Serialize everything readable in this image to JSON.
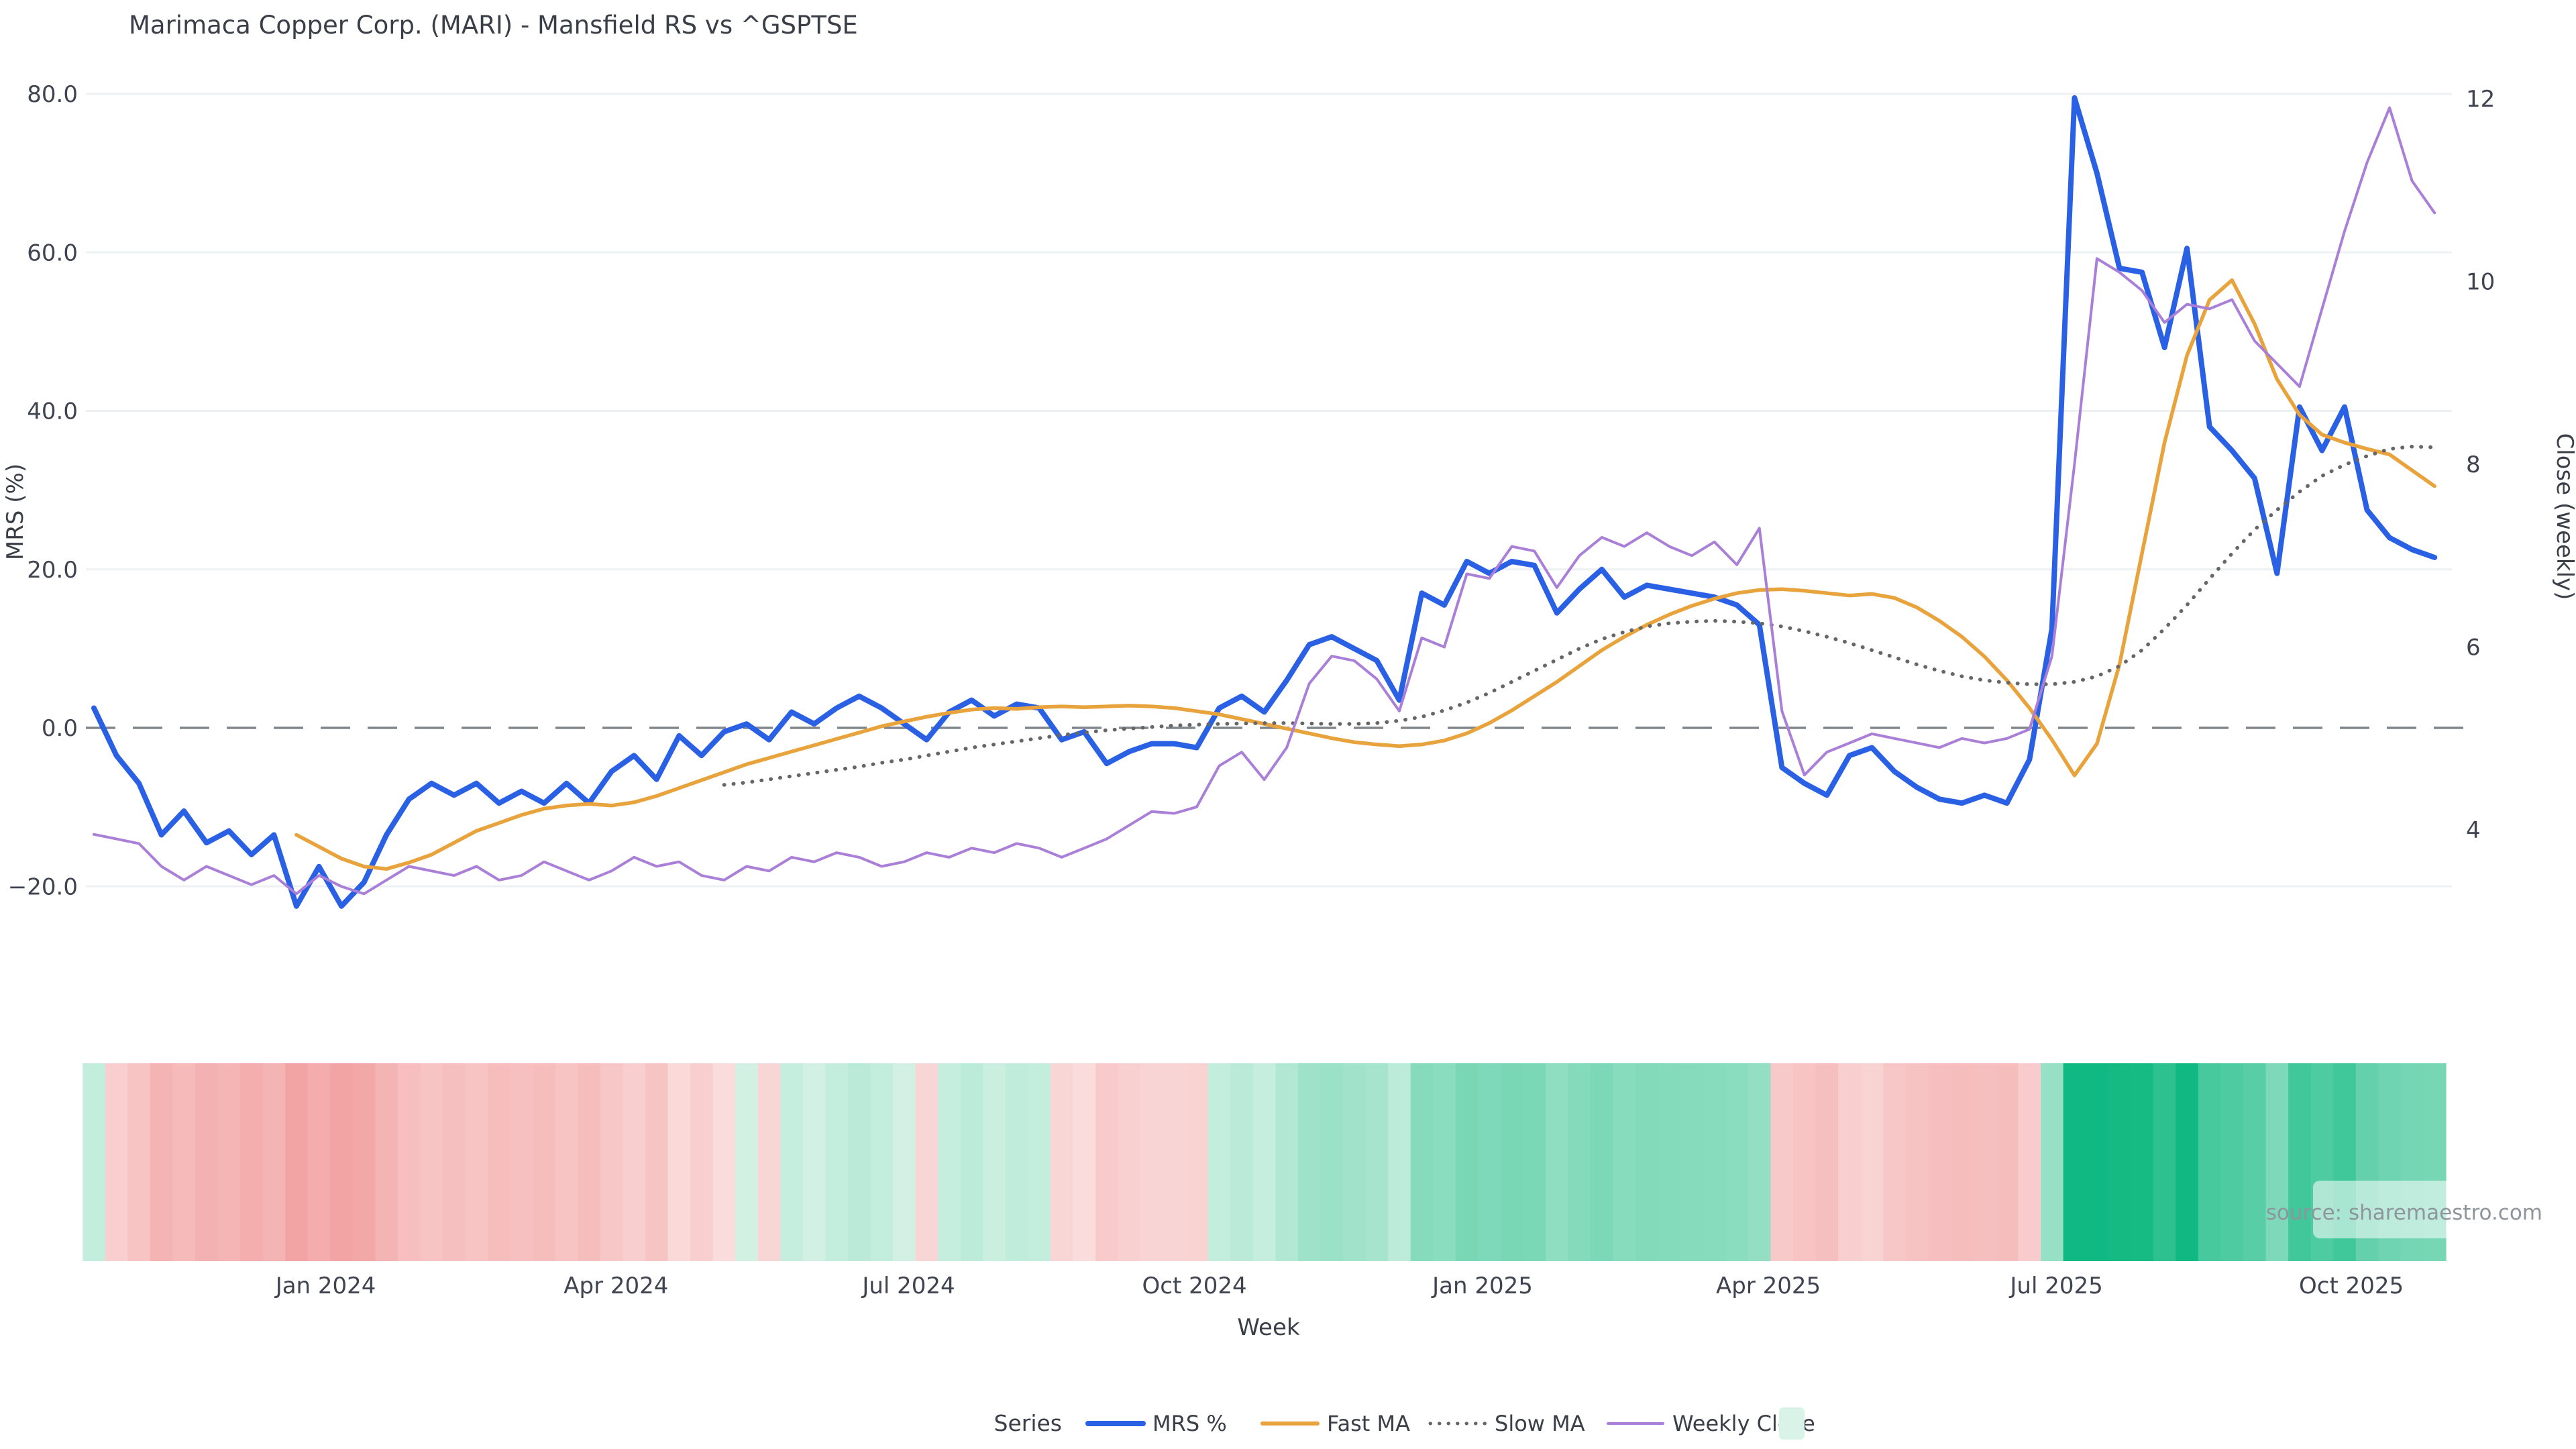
{
  "title": "Marimaca Copper Corp. (MARI) - Mansfield RS vs ^GSPTSE",
  "source": "source: sharemaestro.com",
  "axes": {
    "left": {
      "label": "MRS (%)",
      "ticks": [
        {
          "v": 80,
          "label": "80.0"
        },
        {
          "v": 60,
          "label": "60.0"
        },
        {
          "v": 40,
          "label": "40.0"
        },
        {
          "v": 20,
          "label": "20.0"
        },
        {
          "v": 0,
          "label": "0.0"
        },
        {
          "v": -20,
          "label": "−20.0"
        }
      ]
    },
    "right": {
      "label": "Close (weekly)",
      "ticks": [
        {
          "v": 12,
          "label": "12"
        },
        {
          "v": 10,
          "label": "10"
        },
        {
          "v": 8,
          "label": "8"
        },
        {
          "v": 6,
          "label": "6"
        },
        {
          "v": 4,
          "label": "4"
        }
      ]
    },
    "x": {
      "label": "Week",
      "ticks": [
        {
          "week": 10.3,
          "label": "Jan 2024"
        },
        {
          "week": 23.2,
          "label": "Apr 2024"
        },
        {
          "week": 36.2,
          "label": "Jul 2024"
        },
        {
          "week": 48.9,
          "label": "Oct 2024"
        },
        {
          "week": 61.7,
          "label": "Jan 2025"
        },
        {
          "week": 74.4,
          "label": "Apr 2025"
        },
        {
          "week": 87.2,
          "label": "Jul 2025"
        },
        {
          "week": 100.3,
          "label": "Oct 2025"
        }
      ]
    }
  },
  "legend": {
    "title": "Series",
    "items": [
      {
        "label": "MRS %",
        "color": "#2a61e4",
        "style": "solid",
        "width": 8
      },
      {
        "label": "Fast MA",
        "color": "#e8a33d",
        "style": "solid",
        "width": 6
      },
      {
        "label": "Slow MA",
        "color": "#666666",
        "style": "dotted",
        "width": 5
      },
      {
        "label": "Weekly Close",
        "color": "#a97fd8",
        "style": "solid",
        "width": 4
      },
      {
        "label": "",
        "color": "#d9f3e8",
        "style": "square",
        "width": 0
      }
    ]
  },
  "chart_data": {
    "type": "line",
    "x_unit": "week_index",
    "n_weeks": 105,
    "ylim_left": [
      -25,
      82
    ],
    "ylim_right": [
      3.2,
      12.3
    ],
    "grid": "horizontal-left-ticks",
    "zero_line": {
      "value": 0,
      "style": "dashed",
      "color": "#80868b"
    },
    "legend_position": "bottom-center",
    "series": [
      {
        "name": "MRS %",
        "axis": "left",
        "color": "#2a61e4",
        "style": "solid",
        "line_width": 8,
        "values": [
          2.5,
          -3.5,
          -7,
          -13.5,
          -10.5,
          -14.5,
          -13,
          -16,
          -13.5,
          -22.5,
          -17.5,
          -22.5,
          -19.5,
          -13.5,
          -9,
          -7,
          -8.5,
          -7,
          -9.5,
          -8,
          -9.5,
          -7,
          -9.5,
          -5.5,
          -3.5,
          -6.5,
          -1,
          -3.5,
          -0.5,
          0.5,
          -1.5,
          2,
          0.5,
          2.5,
          4,
          2.5,
          0.5,
          -1.5,
          2,
          3.5,
          1.5,
          3,
          2.5,
          -1.5,
          -0.5,
          -4.5,
          -3,
          -2,
          -2,
          -2.5,
          2.5,
          4,
          2,
          6,
          10.5,
          11.5,
          10,
          8.5,
          3.5,
          17,
          15.5,
          21,
          19.5,
          21,
          20.5,
          14.5,
          17.5,
          20,
          16.5,
          18,
          17.5,
          17,
          16.5,
          15.5,
          13,
          -5,
          -7,
          -8.5,
          -3.5,
          -2.5,
          -5.5,
          -7.5,
          -9,
          -9.5,
          -8.5,
          -9.5,
          -4,
          12.5,
          79.5,
          70,
          58,
          57.5,
          48,
          60.5,
          38,
          35,
          31.5,
          19.5,
          40.5,
          35,
          40.5,
          27.5,
          24,
          22.5,
          21.5
        ]
      },
      {
        "name": "Fast MA",
        "axis": "left",
        "color": "#e8a33d",
        "style": "solid",
        "line_width": 5.5,
        "start_week": 9,
        "values": [
          -13.5,
          -15,
          -16.5,
          -17.5,
          -17.8,
          -17,
          -16,
          -14.5,
          -13,
          -12,
          -11,
          -10.2,
          -9.8,
          -9.6,
          -9.8,
          -9.4,
          -8.6,
          -7.6,
          -6.6,
          -5.6,
          -4.6,
          -3.8,
          -3,
          -2.2,
          -1.4,
          -0.6,
          0.2,
          0.8,
          1.4,
          1.9,
          2.3,
          2.5,
          2.4,
          2.6,
          2.7,
          2.6,
          2.7,
          2.8,
          2.7,
          2.5,
          2.1,
          1.7,
          1.1,
          0.5,
          -0.1,
          -0.7,
          -1.3,
          -1.8,
          -2.1,
          -2.3,
          -2.1,
          -1.6,
          -0.7,
          0.6,
          2.2,
          4,
          5.8,
          7.8,
          9.8,
          11.5,
          13,
          14.3,
          15.4,
          16.3,
          17,
          17.4,
          17.5,
          17.3,
          17,
          16.7,
          16.9,
          16.4,
          15.2,
          13.5,
          11.5,
          9,
          6,
          2.5,
          -1.5,
          -6,
          -2,
          8,
          22,
          36,
          47,
          54,
          56.5,
          51,
          44,
          39.5,
          37,
          36,
          35.2,
          34.5,
          32.5,
          30.5
        ]
      },
      {
        "name": "Slow MA",
        "axis": "left",
        "color": "#666666",
        "style": "dotted",
        "line_width": 5.5,
        "start_week": 28,
        "values": [
          -7.2,
          -6.9,
          -6.5,
          -6.1,
          -5.7,
          -5.3,
          -4.9,
          -4.4,
          -4,
          -3.5,
          -3,
          -2.5,
          -2.1,
          -1.7,
          -1.3,
          -0.9,
          -0.6,
          -0.3,
          -0.1,
          0.1,
          0.3,
          0.4,
          0.5,
          0.55,
          0.6,
          0.6,
          0.55,
          0.5,
          0.5,
          0.6,
          0.9,
          1.4,
          2.2,
          3.2,
          4.4,
          5.8,
          7.2,
          8.6,
          10,
          11.2,
          12.1,
          12.8,
          13.2,
          13.4,
          13.5,
          13.4,
          13.2,
          12.8,
          12.2,
          11.5,
          10.7,
          9.8,
          8.9,
          8,
          7.2,
          6.5,
          6,
          5.7,
          5.5,
          5.5,
          5.8,
          6.5,
          7.8,
          9.8,
          12.5,
          15.5,
          18.8,
          22,
          25,
          27.5,
          29.8,
          31.8,
          33.2,
          34.3,
          35.2,
          35.5,
          35.4
        ]
      },
      {
        "name": "Weekly Close",
        "axis": "right",
        "color": "#a97fd8",
        "style": "solid",
        "line_width": 4,
        "values": [
          3.95,
          3.9,
          3.85,
          3.6,
          3.45,
          3.6,
          3.5,
          3.4,
          3.5,
          3.3,
          3.5,
          3.38,
          3.3,
          3.45,
          3.6,
          3.55,
          3.5,
          3.6,
          3.45,
          3.5,
          3.65,
          3.55,
          3.45,
          3.55,
          3.7,
          3.6,
          3.65,
          3.5,
          3.45,
          3.6,
          3.55,
          3.7,
          3.65,
          3.75,
          3.7,
          3.6,
          3.65,
          3.75,
          3.7,
          3.8,
          3.75,
          3.85,
          3.8,
          3.7,
          3.8,
          3.9,
          4.05,
          4.2,
          4.18,
          4.25,
          4.7,
          4.85,
          4.55,
          4.9,
          5.6,
          5.9,
          5.85,
          5.65,
          5.3,
          6.1,
          6.0,
          6.8,
          6.75,
          7.1,
          7.05,
          6.65,
          7.0,
          7.2,
          7.1,
          7.25,
          7.1,
          7.0,
          7.15,
          6.9,
          7.3,
          5.3,
          4.6,
          4.85,
          4.95,
          5.05,
          5.0,
          4.95,
          4.9,
          5.0,
          4.95,
          5.0,
          5.1,
          5.9,
          8.0,
          10.25,
          10.1,
          9.9,
          9.55,
          9.75,
          9.7,
          9.8,
          9.35,
          9.1,
          8.85,
          9.7,
          10.55,
          11.3,
          11.9,
          11.1,
          10.75
        ]
      }
    ],
    "heatmap": {
      "driven_by": "MRS %",
      "pos_color": "#10b981",
      "pos_base": "#d9f3e7",
      "pos_max": 60,
      "neg_color": "#f2a0a0",
      "neg_base": "#fbe3e3",
      "neg_max": 24
    }
  }
}
